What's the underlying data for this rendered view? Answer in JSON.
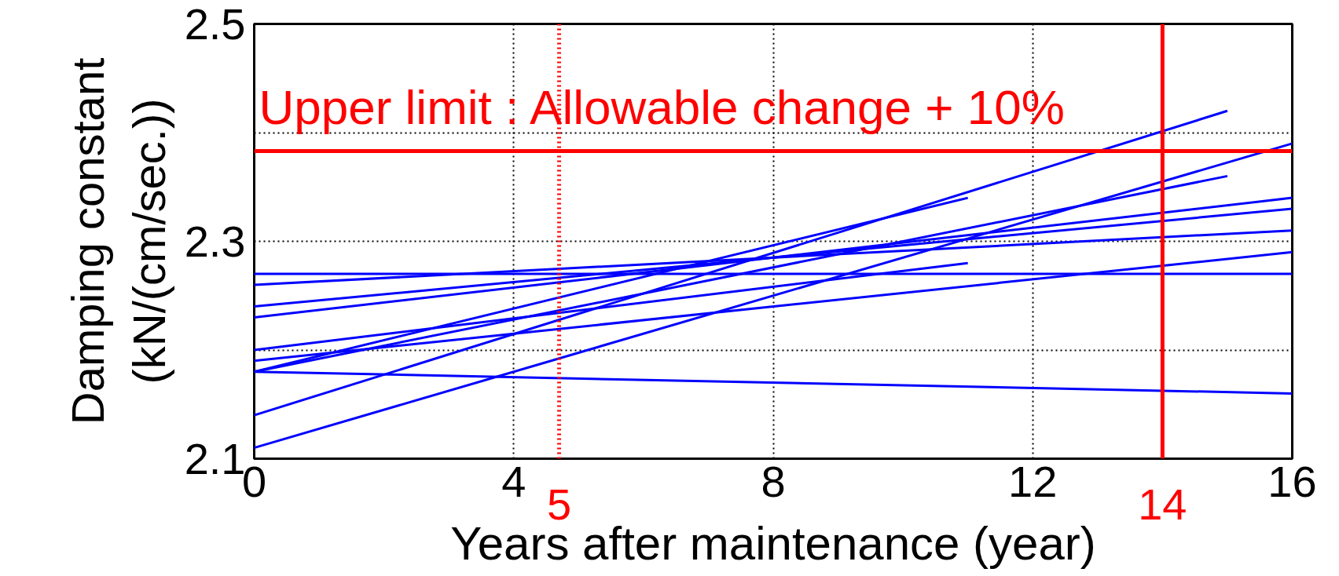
{
  "chart_data": {
    "type": "line",
    "xlabel": "Years after maintenance (year)",
    "ylabel": "Damping constant\n(kN/(cm/sec.))",
    "xlim": [
      0,
      16
    ],
    "ylim": [
      2.1,
      2.5
    ],
    "xticks": [
      0,
      4,
      8,
      12,
      16
    ],
    "yticks": [
      2.1,
      {
        "value": 2.2,
        "label": null
      },
      2.3,
      {
        "value": 2.4,
        "label": null
      },
      2.5
    ],
    "grid": true,
    "line_style": "solid",
    "marker": "none",
    "series": [
      {
        "color": "#0000ff",
        "x": [
          0,
          16
        ],
        "values": [
          2.27,
          2.27
        ]
      },
      {
        "color": "#0000ff",
        "x": [
          0,
          16
        ],
        "values": [
          2.26,
          2.31
        ]
      },
      {
        "color": "#0000ff",
        "x": [
          0,
          16
        ],
        "values": [
          2.24,
          2.33
        ]
      },
      {
        "color": "#0000ff",
        "x": [
          0,
          16
        ],
        "values": [
          2.23,
          2.34
        ]
      },
      {
        "color": "#0000ff",
        "x": [
          0,
          11
        ],
        "values": [
          2.2,
          2.28
        ]
      },
      {
        "color": "#0000ff",
        "x": [
          0,
          16
        ],
        "values": [
          2.19,
          2.29
        ]
      },
      {
        "color": "#0000ff",
        "x": [
          0,
          11
        ],
        "values": [
          2.18,
          2.34
        ]
      },
      {
        "color": "#0000ff",
        "x": [
          0,
          15
        ],
        "values": [
          2.18,
          2.36
        ]
      },
      {
        "color": "#0000ff",
        "x": [
          0,
          16
        ],
        "values": [
          2.18,
          2.16
        ]
      },
      {
        "color": "#0000ff",
        "x": [
          0,
          15
        ],
        "values": [
          2.14,
          2.42
        ]
      },
      {
        "color": "#0000ff",
        "x": [
          0,
          16
        ],
        "values": [
          2.11,
          2.39
        ]
      }
    ],
    "ref_lines": [
      {
        "axis": "y",
        "value": 2.383,
        "label": "Upper limit : Allowable change + 10%",
        "color": "#ff0000",
        "line_style": "solid"
      },
      {
        "axis": "x",
        "value": 4.7,
        "label": "5",
        "color": "#ff0000",
        "line_style": "dotted"
      },
      {
        "axis": "x",
        "value": 14,
        "label": "14",
        "color": "#ff0000",
        "line_style": "solid"
      }
    ]
  }
}
